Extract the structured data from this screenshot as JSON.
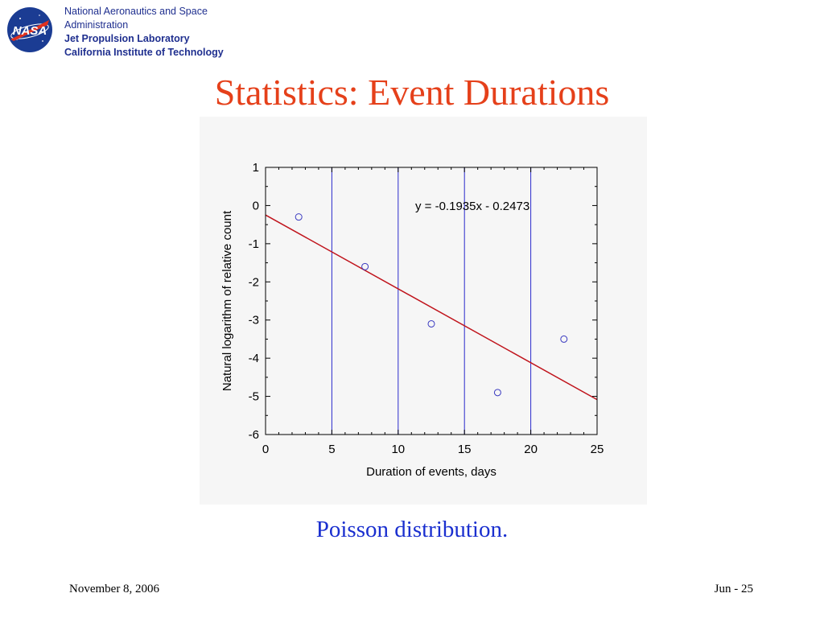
{
  "header": {
    "org_line1": "National Aeronautics and Space",
    "org_line2": "Administration",
    "org_line3": "Jet Propulsion Laboratory",
    "org_line4": "California Institute of Technology",
    "logo_text": "NASA"
  },
  "slide": {
    "title": "Statistics: Event Durations",
    "caption": "Poisson distribution."
  },
  "footer": {
    "date": "November 8, 2006",
    "page": "Jun - 25"
  },
  "colors": {
    "title": "#e5401a",
    "caption": "#1a2fcf",
    "org_text": "#1f2f8f",
    "fit_line": "#c0141c",
    "points": "#3a3ac0",
    "vlines": "#2a2acc"
  },
  "chart_data": {
    "type": "scatter",
    "xlabel": "Duration of events, days",
    "ylabel": "Natural logarithm of relative count",
    "xlim": [
      0,
      25
    ],
    "ylim": [
      -6,
      1
    ],
    "xticks": [
      0,
      5,
      10,
      15,
      20,
      25
    ],
    "yticks": [
      1,
      0,
      -1,
      -2,
      -3,
      -4,
      -5,
      -6
    ],
    "points": [
      {
        "x": 2.5,
        "y": -0.3
      },
      {
        "x": 7.5,
        "y": -1.6
      },
      {
        "x": 12.5,
        "y": -3.1
      },
      {
        "x": 17.5,
        "y": -4.9
      },
      {
        "x": 22.5,
        "y": -3.5
      }
    ],
    "vertical_lines": [
      5,
      10,
      15,
      20
    ],
    "fit": {
      "slope": -0.1935,
      "intercept": -0.2473
    },
    "equation_label": "y = -0.1935x - 0.2473",
    "grid": false
  }
}
